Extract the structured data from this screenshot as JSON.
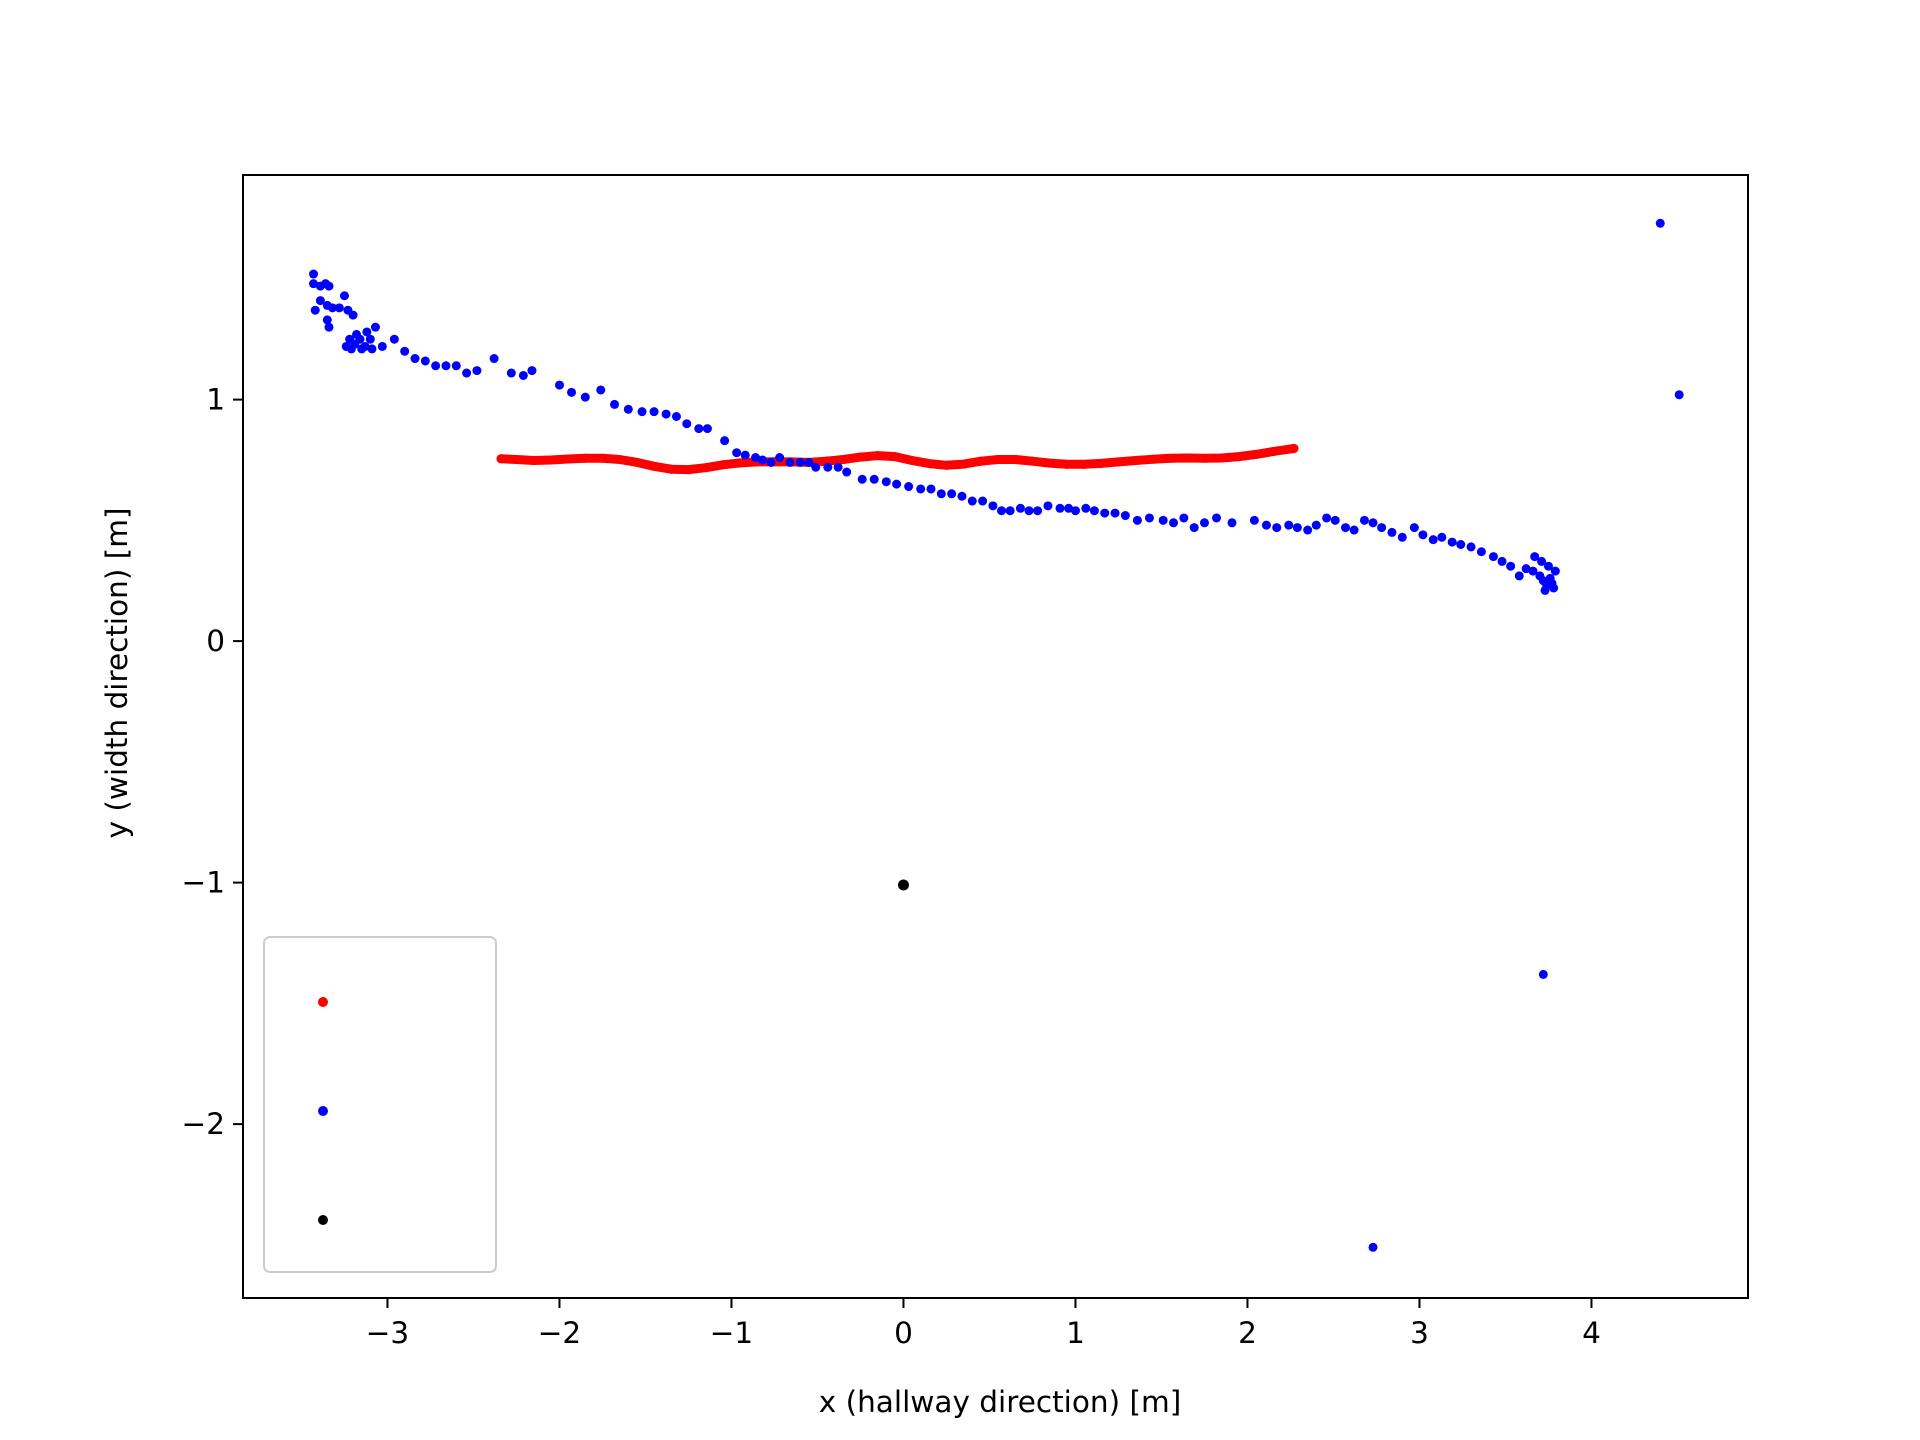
{
  "chart_data": {
    "type": "scatter",
    "title": "",
    "xlabel": "x (hallway direction) [m]",
    "ylabel": "y (width direction) [m]",
    "xlim": [
      -3.84,
      4.91
    ],
    "ylim": [
      -2.72,
      1.93
    ],
    "xticks": [
      {
        "value": -3,
        "label": "−3"
      },
      {
        "value": -2,
        "label": "−2"
      },
      {
        "value": -1,
        "label": "−1"
      },
      {
        "value": 0,
        "label": "0"
      },
      {
        "value": 1,
        "label": "1"
      },
      {
        "value": 2,
        "label": "2"
      },
      {
        "value": 3,
        "label": "3"
      },
      {
        "value": 4,
        "label": "4"
      }
    ],
    "yticks": [
      {
        "value": -2,
        "label": "−2"
      },
      {
        "value": -1,
        "label": "−1"
      },
      {
        "value": 0,
        "label": "0"
      },
      {
        "value": 1,
        "label": "1"
      }
    ],
    "grid": false,
    "legend": {
      "placement": "lower-left",
      "entries": [
        {
          "color": "#ff0000",
          "label": ""
        },
        {
          "color": "#0000ff",
          "label": ""
        },
        {
          "color": "#000000",
          "label": ""
        }
      ]
    },
    "series": [
      {
        "color": "#ff0000",
        "marker": "dense-line",
        "points": [
          [
            -2.34,
            0.755
          ],
          [
            -2.25,
            0.752
          ],
          [
            -2.15,
            0.748
          ],
          [
            -2.05,
            0.75
          ],
          [
            -1.95,
            0.754
          ],
          [
            -1.85,
            0.757
          ],
          [
            -1.75,
            0.757
          ],
          [
            -1.65,
            0.752
          ],
          [
            -1.55,
            0.74
          ],
          [
            -1.45,
            0.724
          ],
          [
            -1.35,
            0.712
          ],
          [
            -1.25,
            0.71
          ],
          [
            -1.15,
            0.718
          ],
          [
            -1.05,
            0.73
          ],
          [
            -0.95,
            0.738
          ],
          [
            -0.85,
            0.742
          ],
          [
            -0.75,
            0.743
          ],
          [
            -0.65,
            0.742
          ],
          [
            -0.55,
            0.74
          ],
          [
            -0.45,
            0.745
          ],
          [
            -0.35,
            0.752
          ],
          [
            -0.25,
            0.762
          ],
          [
            -0.15,
            0.768
          ],
          [
            -0.05,
            0.764
          ],
          [
            0.05,
            0.748
          ],
          [
            0.15,
            0.735
          ],
          [
            0.25,
            0.728
          ],
          [
            0.35,
            0.733
          ],
          [
            0.45,
            0.745
          ],
          [
            0.55,
            0.752
          ],
          [
            0.65,
            0.752
          ],
          [
            0.75,
            0.745
          ],
          [
            0.85,
            0.737
          ],
          [
            0.95,
            0.732
          ],
          [
            1.05,
            0.732
          ],
          [
            1.15,
            0.736
          ],
          [
            1.25,
            0.742
          ],
          [
            1.35,
            0.748
          ],
          [
            1.45,
            0.753
          ],
          [
            1.55,
            0.757
          ],
          [
            1.65,
            0.758
          ],
          [
            1.75,
            0.757
          ],
          [
            1.85,
            0.758
          ],
          [
            1.95,
            0.764
          ],
          [
            2.05,
            0.773
          ],
          [
            2.15,
            0.785
          ],
          [
            2.27,
            0.798
          ]
        ]
      },
      {
        "color": "#0000ff",
        "marker": "dot",
        "points": [
          [
            -3.43,
            1.52
          ],
          [
            -3.43,
            1.48
          ],
          [
            -3.39,
            1.47
          ],
          [
            -3.36,
            1.48
          ],
          [
            -3.34,
            1.47
          ],
          [
            -3.42,
            1.37
          ],
          [
            -3.39,
            1.41
          ],
          [
            -3.35,
            1.39
          ],
          [
            -3.32,
            1.38
          ],
          [
            -3.28,
            1.38
          ],
          [
            -3.35,
            1.33
          ],
          [
            -3.34,
            1.3
          ],
          [
            -3.25,
            1.43
          ],
          [
            -3.23,
            1.37
          ],
          [
            -3.2,
            1.35
          ],
          [
            -3.24,
            1.22
          ],
          [
            -3.22,
            1.25
          ],
          [
            -3.21,
            1.21
          ],
          [
            -3.19,
            1.23
          ],
          [
            -3.18,
            1.27
          ],
          [
            -3.16,
            1.25
          ],
          [
            -3.15,
            1.21
          ],
          [
            -3.13,
            1.22
          ],
          [
            -3.12,
            1.28
          ],
          [
            -3.1,
            1.25
          ],
          [
            -3.09,
            1.21
          ],
          [
            -3.07,
            1.3
          ],
          [
            -3.03,
            1.22
          ],
          [
            -2.96,
            1.25
          ],
          [
            -2.9,
            1.2
          ],
          [
            -2.84,
            1.17
          ],
          [
            -2.78,
            1.16
          ],
          [
            -2.72,
            1.14
          ],
          [
            -2.66,
            1.14
          ],
          [
            -2.6,
            1.14
          ],
          [
            -2.54,
            1.11
          ],
          [
            -2.48,
            1.12
          ],
          [
            -2.38,
            1.17
          ],
          [
            -2.28,
            1.11
          ],
          [
            -2.21,
            1.1
          ],
          [
            -2.16,
            1.12
          ],
          [
            -2.0,
            1.06
          ],
          [
            -1.93,
            1.03
          ],
          [
            -1.85,
            1.01
          ],
          [
            -1.76,
            1.04
          ],
          [
            -1.68,
            0.98
          ],
          [
            -1.6,
            0.96
          ],
          [
            -1.52,
            0.95
          ],
          [
            -1.45,
            0.95
          ],
          [
            -1.38,
            0.94
          ],
          [
            -1.32,
            0.93
          ],
          [
            -1.26,
            0.9
          ],
          [
            -1.19,
            0.88
          ],
          [
            -1.14,
            0.88
          ],
          [
            -1.04,
            0.83
          ],
          [
            -0.97,
            0.78
          ],
          [
            -0.92,
            0.77
          ],
          [
            -0.86,
            0.76
          ],
          [
            -0.82,
            0.75
          ],
          [
            -0.77,
            0.74
          ],
          [
            -0.72,
            0.76
          ],
          [
            -0.66,
            0.74
          ],
          [
            -0.6,
            0.74
          ],
          [
            -0.55,
            0.74
          ],
          [
            -0.51,
            0.72
          ],
          [
            -0.44,
            0.72
          ],
          [
            -0.38,
            0.72
          ],
          [
            -0.33,
            0.7
          ],
          [
            -0.24,
            0.67
          ],
          [
            -0.17,
            0.67
          ],
          [
            -0.1,
            0.66
          ],
          [
            -0.04,
            0.65
          ],
          [
            0.03,
            0.64
          ],
          [
            0.1,
            0.63
          ],
          [
            0.16,
            0.63
          ],
          [
            0.22,
            0.61
          ],
          [
            0.28,
            0.61
          ],
          [
            0.34,
            0.6
          ],
          [
            0.4,
            0.58
          ],
          [
            0.46,
            0.58
          ],
          [
            0.52,
            0.56
          ],
          [
            0.57,
            0.54
          ],
          [
            0.62,
            0.54
          ],
          [
            0.68,
            0.55
          ],
          [
            0.73,
            0.54
          ],
          [
            0.78,
            0.54
          ],
          [
            0.84,
            0.56
          ],
          [
            0.91,
            0.55
          ],
          [
            0.96,
            0.55
          ],
          [
            1.0,
            0.54
          ],
          [
            1.06,
            0.55
          ],
          [
            1.11,
            0.54
          ],
          [
            1.17,
            0.53
          ],
          [
            1.23,
            0.53
          ],
          [
            1.29,
            0.52
          ],
          [
            1.36,
            0.5
          ],
          [
            1.43,
            0.51
          ],
          [
            1.51,
            0.5
          ],
          [
            1.57,
            0.49
          ],
          [
            1.63,
            0.51
          ],
          [
            1.69,
            0.47
          ],
          [
            1.75,
            0.49
          ],
          [
            1.82,
            0.51
          ],
          [
            1.91,
            0.49
          ],
          [
            2.04,
            0.5
          ],
          [
            2.11,
            0.48
          ],
          [
            2.17,
            0.47
          ],
          [
            2.24,
            0.48
          ],
          [
            2.29,
            0.47
          ],
          [
            2.35,
            0.46
          ],
          [
            2.4,
            0.48
          ],
          [
            2.46,
            0.51
          ],
          [
            2.51,
            0.5
          ],
          [
            2.57,
            0.47
          ],
          [
            2.62,
            0.46
          ],
          [
            2.68,
            0.5
          ],
          [
            2.73,
            0.49
          ],
          [
            2.78,
            0.47
          ],
          [
            2.84,
            0.45
          ],
          [
            2.9,
            0.43
          ],
          [
            2.97,
            0.47
          ],
          [
            3.02,
            0.44
          ],
          [
            3.08,
            0.42
          ],
          [
            3.13,
            0.43
          ],
          [
            3.19,
            0.41
          ],
          [
            3.24,
            0.4
          ],
          [
            3.3,
            0.39
          ],
          [
            3.36,
            0.37
          ],
          [
            3.43,
            0.35
          ],
          [
            3.48,
            0.33
          ],
          [
            3.53,
            0.31
          ],
          [
            3.58,
            0.27
          ],
          [
            3.62,
            0.3
          ],
          [
            3.66,
            0.29
          ],
          [
            3.7,
            0.27
          ],
          [
            3.72,
            0.25
          ],
          [
            3.74,
            0.23
          ],
          [
            3.76,
            0.26
          ],
          [
            3.78,
            0.22
          ],
          [
            3.79,
            0.29
          ],
          [
            3.75,
            0.31
          ],
          [
            3.71,
            0.33
          ],
          [
            3.67,
            0.35
          ],
          [
            3.73,
            0.21
          ],
          [
            3.77,
            0.24
          ],
          [
            4.4,
            1.73
          ],
          [
            4.51,
            1.02
          ],
          [
            3.72,
            -1.38
          ],
          [
            2.73,
            -2.51
          ]
        ]
      },
      {
        "color": "#000000",
        "marker": "dot",
        "points": [
          [
            0.0,
            -1.01
          ]
        ]
      }
    ]
  }
}
